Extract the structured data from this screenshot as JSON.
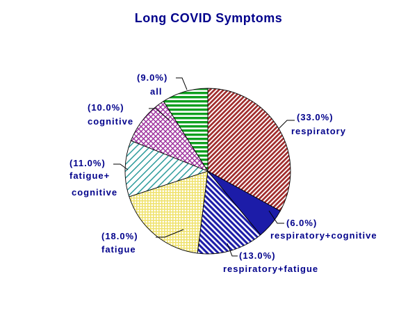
{
  "title": "Long COVID Symptoms",
  "chart_data": {
    "type": "pie",
    "title": "Long COVID Symptoms",
    "start_angle": "12-oclock",
    "direction": "clockwise",
    "background": "#FFFFFF",
    "outline_color": "#000000",
    "text_color": "#00008B",
    "legend": "none (callout labels with leader lines)",
    "slices": [
      {
        "label": "respiratory",
        "value": 33.0,
        "pct_text": "(33.0%)",
        "display_lines": [
          "respiratory"
        ],
        "pattern": "diagonal-forward-hatch",
        "color": "#A02C2C"
      },
      {
        "label": "respiratory+cognitive",
        "value": 6.0,
        "pct_text": "(6.0%)",
        "display_lines": [
          "respiratory+cognitive"
        ],
        "pattern": "solid",
        "color": "#1C1CA8"
      },
      {
        "label": "respiratory+fatigue",
        "value": 13.0,
        "pct_text": "(13.0%)",
        "display_lines": [
          "respiratory+fatigue"
        ],
        "pattern": "diagonal-back-hatch",
        "color": "#1C1CA8"
      },
      {
        "label": "fatigue",
        "value": 18.0,
        "pct_text": "(18.0%)",
        "display_lines": [
          "fatigue"
        ],
        "pattern": "grid-hatch",
        "color": "#EFE26B"
      },
      {
        "label": "fatigue+cognitive",
        "value": 11.0,
        "pct_text": "(11.0%)",
        "display_lines": [
          "fatigue+",
          "cognitive"
        ],
        "pattern": "diagonal-forward-thin",
        "color": "#2E9C9C"
      },
      {
        "label": "cognitive",
        "value": 10.0,
        "pct_text": "(10.0%)",
        "display_lines": [
          "cognitive"
        ],
        "pattern": "diamond-crosshatch",
        "color": "#9C2F9C"
      },
      {
        "label": "all",
        "value": 9.0,
        "pct_text": "(9.0%)",
        "display_lines": [
          "all"
        ],
        "pattern": "horizontal-stripes",
        "color": "#0FA01F"
      }
    ]
  }
}
